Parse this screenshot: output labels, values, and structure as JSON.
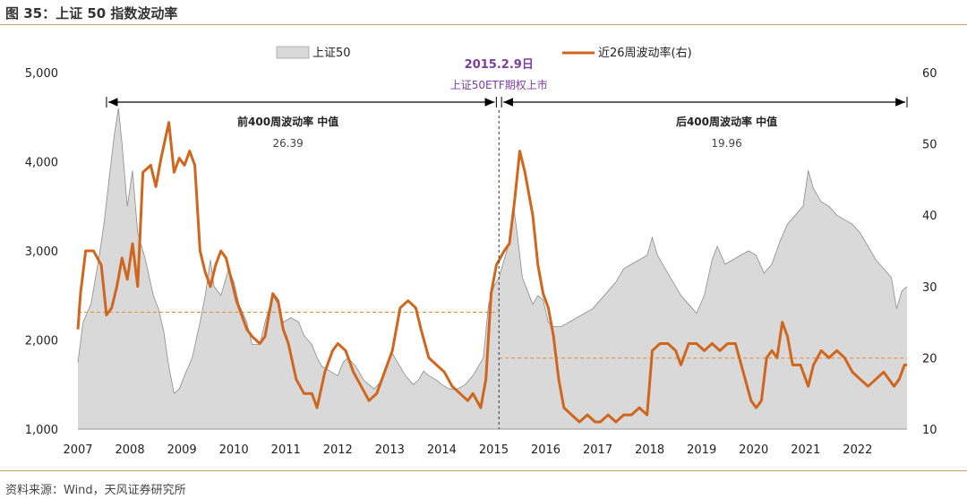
{
  "figure": {
    "title": "图 35：上证 50 指数波动率",
    "source": "资料来源：Wind，天风证券研究所"
  },
  "chart_data": {
    "type": "area",
    "title": "图 35：上证 50 指数波动率",
    "x_ticks": [
      "2007",
      "2008",
      "2009",
      "2010",
      "2011",
      "2012",
      "2013",
      "2014",
      "2015",
      "2016",
      "2017",
      "2018",
      "2019",
      "2020",
      "2021",
      "2022"
    ],
    "x_range": [
      2007.0,
      2022.95
    ],
    "y_left": {
      "range": [
        1000,
        5000
      ],
      "ticks": [
        1000,
        2000,
        3000,
        4000,
        5000
      ],
      "tick_labels": [
        "1,000",
        "2,000",
        "3,000",
        "4,000",
        "5,000"
      ]
    },
    "y_right": {
      "range": [
        10,
        60
      ],
      "ticks": [
        10,
        20,
        30,
        40,
        50,
        60
      ],
      "tick_labels": [
        "10",
        "20",
        "30",
        "40",
        "50",
        "60"
      ]
    },
    "legend": {
      "placement": "top"
    },
    "series": [
      {
        "name": "上证50",
        "kind": "area",
        "axis": "left",
        "color": "#d9d9d9",
        "stroke": "#8c8c8c",
        "points": [
          [
            2007.0,
            1750
          ],
          [
            2007.1,
            2200
          ],
          [
            2007.25,
            2400
          ],
          [
            2007.4,
            2900
          ],
          [
            2007.5,
            3300
          ],
          [
            2007.6,
            3800
          ],
          [
            2007.7,
            4300
          ],
          [
            2007.78,
            4600
          ],
          [
            2007.85,
            4200
          ],
          [
            2007.95,
            3500
          ],
          [
            2008.05,
            3900
          ],
          [
            2008.15,
            3200
          ],
          [
            2008.3,
            2900
          ],
          [
            2008.45,
            2500
          ],
          [
            2008.55,
            2350
          ],
          [
            2008.65,
            2100
          ],
          [
            2008.75,
            1700
          ],
          [
            2008.85,
            1400
          ],
          [
            2008.95,
            1450
          ],
          [
            2009.05,
            1600
          ],
          [
            2009.2,
            1800
          ],
          [
            2009.35,
            2200
          ],
          [
            2009.45,
            2500
          ],
          [
            2009.55,
            2900
          ],
          [
            2009.62,
            2600
          ],
          [
            2009.75,
            2500
          ],
          [
            2009.9,
            2800
          ],
          [
            2010.0,
            2650
          ],
          [
            2010.1,
            2400
          ],
          [
            2010.25,
            2200
          ],
          [
            2010.35,
            1950
          ],
          [
            2010.5,
            1950
          ],
          [
            2010.6,
            2200
          ],
          [
            2010.75,
            2500
          ],
          [
            2010.85,
            2400
          ],
          [
            2010.95,
            2200
          ],
          [
            2011.1,
            2250
          ],
          [
            2011.25,
            2200
          ],
          [
            2011.35,
            2050
          ],
          [
            2011.5,
            1950
          ],
          [
            2011.6,
            1800
          ],
          [
            2011.7,
            1700
          ],
          [
            2011.85,
            1650
          ],
          [
            2012.0,
            1600
          ],
          [
            2012.1,
            1750
          ],
          [
            2012.2,
            1800
          ],
          [
            2012.35,
            1700
          ],
          [
            2012.5,
            1550
          ],
          [
            2012.6,
            1500
          ],
          [
            2012.7,
            1450
          ],
          [
            2012.85,
            1550
          ],
          [
            2012.95,
            1750
          ],
          [
            2013.05,
            1850
          ],
          [
            2013.15,
            1750
          ],
          [
            2013.3,
            1600
          ],
          [
            2013.45,
            1500
          ],
          [
            2013.55,
            1550
          ],
          [
            2013.65,
            1650
          ],
          [
            2013.75,
            1600
          ],
          [
            2013.9,
            1550
          ],
          [
            2014.0,
            1500
          ],
          [
            2014.15,
            1450
          ],
          [
            2014.3,
            1450
          ],
          [
            2014.45,
            1500
          ],
          [
            2014.6,
            1600
          ],
          [
            2014.7,
            1700
          ],
          [
            2014.8,
            1800
          ],
          [
            2014.9,
            2400
          ],
          [
            2015.0,
            2600
          ],
          [
            2015.1,
            2700
          ],
          [
            2015.2,
            2900
          ],
          [
            2015.3,
            3100
          ],
          [
            2015.38,
            3500
          ],
          [
            2015.45,
            3200
          ],
          [
            2015.55,
            2700
          ],
          [
            2015.65,
            2550
          ],
          [
            2015.75,
            2400
          ],
          [
            2015.85,
            2500
          ],
          [
            2015.95,
            2450
          ],
          [
            2016.05,
            2200
          ],
          [
            2016.15,
            2150
          ],
          [
            2016.3,
            2150
          ],
          [
            2016.45,
            2200
          ],
          [
            2016.6,
            2250
          ],
          [
            2016.75,
            2300
          ],
          [
            2016.9,
            2350
          ],
          [
            2017.05,
            2450
          ],
          [
            2017.2,
            2550
          ],
          [
            2017.35,
            2650
          ],
          [
            2017.5,
            2800
          ],
          [
            2017.65,
            2850
          ],
          [
            2017.8,
            2900
          ],
          [
            2017.95,
            2950
          ],
          [
            2018.05,
            3150
          ],
          [
            2018.15,
            2950
          ],
          [
            2018.3,
            2800
          ],
          [
            2018.45,
            2650
          ],
          [
            2018.6,
            2500
          ],
          [
            2018.75,
            2400
          ],
          [
            2018.9,
            2300
          ],
          [
            2019.05,
            2500
          ],
          [
            2019.2,
            2900
          ],
          [
            2019.3,
            3050
          ],
          [
            2019.45,
            2850
          ],
          [
            2019.6,
            2900
          ],
          [
            2019.75,
            2950
          ],
          [
            2019.9,
            3000
          ],
          [
            2020.05,
            2950
          ],
          [
            2020.2,
            2750
          ],
          [
            2020.35,
            2850
          ],
          [
            2020.5,
            3100
          ],
          [
            2020.65,
            3300
          ],
          [
            2020.8,
            3400
          ],
          [
            2020.95,
            3500
          ],
          [
            2021.05,
            3900
          ],
          [
            2021.15,
            3700
          ],
          [
            2021.3,
            3550
          ],
          [
            2021.45,
            3500
          ],
          [
            2021.6,
            3400
          ],
          [
            2021.75,
            3350
          ],
          [
            2021.9,
            3300
          ],
          [
            2022.05,
            3200
          ],
          [
            2022.2,
            3050
          ],
          [
            2022.35,
            2900
          ],
          [
            2022.5,
            2800
          ],
          [
            2022.65,
            2700
          ],
          [
            2022.75,
            2350
          ],
          [
            2022.85,
            2550
          ],
          [
            2022.95,
            2600
          ]
        ]
      },
      {
        "name": "近26周波动率(右)",
        "kind": "line",
        "axis": "right",
        "color": "#d0661d",
        "points": [
          [
            2007.0,
            24
          ],
          [
            2007.05,
            29
          ],
          [
            2007.15,
            35
          ],
          [
            2007.3,
            35
          ],
          [
            2007.45,
            33
          ],
          [
            2007.55,
            26
          ],
          [
            2007.65,
            27
          ],
          [
            2007.75,
            30
          ],
          [
            2007.85,
            34
          ],
          [
            2007.95,
            31
          ],
          [
            2008.05,
            36
          ],
          [
            2008.15,
            30
          ],
          [
            2008.25,
            46
          ],
          [
            2008.4,
            47
          ],
          [
            2008.5,
            44
          ],
          [
            2008.6,
            48
          ],
          [
            2008.75,
            53
          ],
          [
            2008.85,
            46
          ],
          [
            2008.95,
            48
          ],
          [
            2009.05,
            47
          ],
          [
            2009.15,
            49
          ],
          [
            2009.25,
            47
          ],
          [
            2009.35,
            35
          ],
          [
            2009.45,
            32
          ],
          [
            2009.55,
            30
          ],
          [
            2009.65,
            33
          ],
          [
            2009.75,
            35
          ],
          [
            2009.85,
            34
          ],
          [
            2009.95,
            31
          ],
          [
            2010.05,
            28
          ],
          [
            2010.15,
            26
          ],
          [
            2010.25,
            24
          ],
          [
            2010.35,
            23
          ],
          [
            2010.5,
            22
          ],
          [
            2010.6,
            23
          ],
          [
            2010.75,
            29
          ],
          [
            2010.85,
            28
          ],
          [
            2010.95,
            24
          ],
          [
            2011.05,
            22
          ],
          [
            2011.2,
            17
          ],
          [
            2011.35,
            15
          ],
          [
            2011.5,
            15
          ],
          [
            2011.6,
            13
          ],
          [
            2011.75,
            18
          ],
          [
            2011.9,
            21
          ],
          [
            2012.0,
            22
          ],
          [
            2012.15,
            21
          ],
          [
            2012.3,
            18
          ],
          [
            2012.45,
            16
          ],
          [
            2012.6,
            14
          ],
          [
            2012.75,
            15
          ],
          [
            2012.9,
            18
          ],
          [
            2013.05,
            21
          ],
          [
            2013.2,
            27
          ],
          [
            2013.35,
            28
          ],
          [
            2013.5,
            27
          ],
          [
            2013.6,
            24
          ],
          [
            2013.75,
            20
          ],
          [
            2013.9,
            19
          ],
          [
            2014.05,
            18
          ],
          [
            2014.2,
            16
          ],
          [
            2014.35,
            15
          ],
          [
            2014.5,
            14
          ],
          [
            2014.6,
            15
          ],
          [
            2014.75,
            13
          ],
          [
            2014.85,
            17
          ],
          [
            2014.95,
            29
          ],
          [
            2015.05,
            33
          ],
          [
            2015.2,
            35
          ],
          [
            2015.3,
            36
          ],
          [
            2015.4,
            42
          ],
          [
            2015.5,
            49
          ],
          [
            2015.6,
            46
          ],
          [
            2015.75,
            40
          ],
          [
            2015.85,
            33
          ],
          [
            2015.95,
            29
          ],
          [
            2016.05,
            27
          ],
          [
            2016.15,
            23
          ],
          [
            2016.25,
            17
          ],
          [
            2016.35,
            13
          ],
          [
            2016.5,
            12
          ],
          [
            2016.65,
            11
          ],
          [
            2016.8,
            12
          ],
          [
            2016.95,
            11
          ],
          [
            2017.05,
            11
          ],
          [
            2017.2,
            12
          ],
          [
            2017.35,
            11
          ],
          [
            2017.5,
            12
          ],
          [
            2017.65,
            12
          ],
          [
            2017.8,
            13
          ],
          [
            2017.95,
            12
          ],
          [
            2018.05,
            21
          ],
          [
            2018.2,
            22
          ],
          [
            2018.35,
            22
          ],
          [
            2018.5,
            21
          ],
          [
            2018.6,
            19
          ],
          [
            2018.75,
            22
          ],
          [
            2018.9,
            22
          ],
          [
            2019.05,
            21
          ],
          [
            2019.2,
            22
          ],
          [
            2019.35,
            21
          ],
          [
            2019.5,
            22
          ],
          [
            2019.65,
            22
          ],
          [
            2019.8,
            18
          ],
          [
            2019.95,
            14
          ],
          [
            2020.05,
            13
          ],
          [
            2020.15,
            14
          ],
          [
            2020.25,
            20
          ],
          [
            2020.35,
            21
          ],
          [
            2020.45,
            20
          ],
          [
            2020.55,
            25
          ],
          [
            2020.65,
            23
          ],
          [
            2020.75,
            19
          ],
          [
            2020.9,
            19
          ],
          [
            2021.05,
            16
          ],
          [
            2021.15,
            19
          ],
          [
            2021.3,
            21
          ],
          [
            2021.45,
            20
          ],
          [
            2021.6,
            21
          ],
          [
            2021.75,
            20
          ],
          [
            2021.9,
            18
          ],
          [
            2022.05,
            17
          ],
          [
            2022.2,
            16
          ],
          [
            2022.35,
            17
          ],
          [
            2022.5,
            18
          ],
          [
            2022.6,
            17
          ],
          [
            2022.7,
            16
          ],
          [
            2022.8,
            17
          ],
          [
            2022.9,
            19
          ],
          [
            2022.95,
            19
          ]
        ]
      }
    ],
    "reference_lines": [
      {
        "label": "前400周波动率 中值",
        "value": 26.39,
        "value_label": "26.39",
        "axis": "right",
        "x_from": 2007.0,
        "x_to": 2015.1
      },
      {
        "label": "后400周波动率 中值",
        "value": 19.96,
        "value_label": "19.96",
        "axis": "right",
        "x_from": 2015.1,
        "x_to": 2022.95
      }
    ],
    "event": {
      "x": 2015.1,
      "date_label": "2015.2.9日",
      "desc_label": "上证50ETF期权上市"
    },
    "range_arrows": [
      {
        "x_from": 2007.55,
        "x_to": 2015.05,
        "label": "前400周波动率 中值"
      },
      {
        "x_from": 2015.15,
        "x_to": 2022.95,
        "label": "后400周波动率 中值"
      }
    ]
  }
}
